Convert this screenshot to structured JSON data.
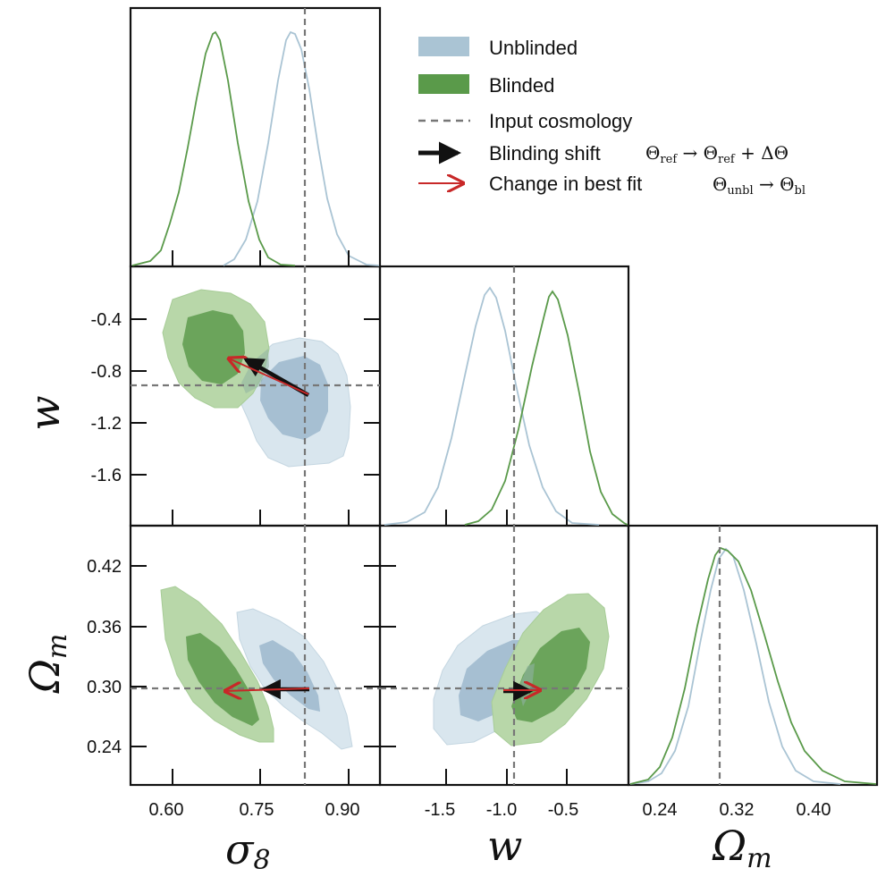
{
  "colors": {
    "unblinded": "#aac4d4",
    "blinded": "#5a9a4a",
    "blinding_shift": "#111111",
    "best_fit_change": "#c82828",
    "input_line": "#777777"
  },
  "legend": {
    "unblinded": "Unblinded",
    "blinded": "Blinded",
    "input": "Input  cosmology",
    "shift_text": "Blinding shift",
    "shift_math": "Θref → Θref + ΔΘ",
    "fit_text": "Change  in  best  fit",
    "fit_math": "Θunbl → Θbl"
  },
  "axes_labels": {
    "sigma8": "σ8",
    "w": "w",
    "omega_m": "Ωm"
  },
  "chart_data": {
    "type": "triangle_corner_plot",
    "parameters": [
      "sigma8",
      "w",
      "Omega_m"
    ],
    "input_cosmology": {
      "sigma8": 0.83,
      "w": -0.92,
      "Omega_m": 0.297
    },
    "ticks": {
      "sigma8": [
        "0.60",
        "0.75",
        "0.90"
      ],
      "w_diag": [
        "-1.5",
        "-1.0",
        "-0.5"
      ],
      "w_row": [
        "-0.4",
        "-0.8",
        "-1.2",
        "-1.6"
      ],
      "Omega_m_row": [
        "0.42",
        "0.36",
        "0.30",
        "0.24"
      ],
      "Omega_m_diag": [
        "0.24",
        "0.32",
        "0.40"
      ]
    },
    "marginals": {
      "sigma8": [
        {
          "series": "unblinded",
          "peak": 0.81,
          "width": 0.04
        },
        {
          "series": "blinded",
          "peak": 0.68,
          "width": 0.04
        }
      ],
      "w": [
        {
          "series": "unblinded",
          "peak": -1.03,
          "width": 0.17
        },
        {
          "series": "blinded",
          "peak": -0.62,
          "width": 0.16
        }
      ],
      "Omega_m": [
        {
          "series": "unblinded",
          "peak": 0.305,
          "width": 0.025
        },
        {
          "series": "blinded",
          "peak": 0.304,
          "width": 0.03
        }
      ]
    },
    "arrows": [
      {
        "panel": "w_vs_sigma8",
        "type": "blinding_shift",
        "from": [
          0.83,
          -0.97
        ],
        "to": [
          0.73,
          -0.66
        ]
      },
      {
        "panel": "w_vs_sigma8",
        "type": "best_fit_change",
        "from": [
          0.83,
          -0.97
        ],
        "to": [
          0.7,
          -0.66
        ]
      },
      {
        "panel": "Omega_m_vs_sigma8",
        "type": "blinding_shift",
        "from": [
          0.83,
          0.297
        ],
        "to": [
          0.71,
          0.297
        ]
      },
      {
        "panel": "Omega_m_vs_sigma8",
        "type": "best_fit_change",
        "from": [
          0.83,
          0.297
        ],
        "to": [
          0.7,
          0.295
        ]
      },
      {
        "panel": "Omega_m_vs_w",
        "type": "blinding_shift",
        "from": [
          -0.92,
          0.297
        ],
        "to": [
          -0.73,
          0.296
        ]
      },
      {
        "panel": "Omega_m_vs_w",
        "type": "best_fit_change",
        "from": [
          -0.92,
          0.297
        ],
        "to": [
          -0.68,
          0.297
        ]
      }
    ]
  }
}
